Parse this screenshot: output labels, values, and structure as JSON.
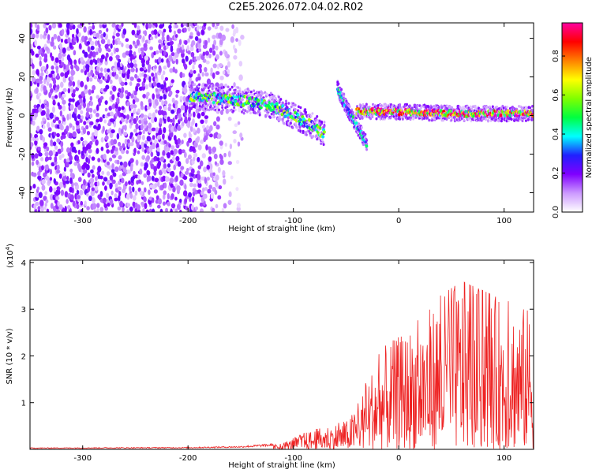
{
  "title": "C2E5.2026.072.04.02.R02",
  "chart_data": [
    {
      "type": "heatmap",
      "xlabel": "Height of straight line (km)",
      "ylabel": "Frequency (Hz)",
      "xlim": [
        -350,
        128
      ],
      "ylim": [
        -50,
        48
      ],
      "x_ticks": [
        -300,
        -200,
        -100,
        0,
        100
      ],
      "x_tick_labels": [
        "-300",
        "-200",
        "-100",
        "0",
        "100"
      ],
      "y_ticks": [
        40,
        20,
        0,
        -20,
        -40
      ],
      "y_tick_labels": [
        "40",
        "20",
        "0",
        "-20",
        "-40"
      ],
      "colorbar": {
        "label": "Normalized spectral amplitude",
        "range": [
          0,
          0.97
        ],
        "ticks": [
          0.0,
          0.2,
          0.4,
          0.6,
          0.8
        ],
        "tick_labels": [
          "0.0",
          "0.2",
          "0.4",
          "0.6",
          "0.8"
        ],
        "colors": [
          "#ffffff",
          "#cc99ff",
          "#8000ff",
          "#2020ff",
          "#00ffff",
          "#00ff40",
          "#80ff00",
          "#ffff00",
          "#ff8000",
          "#ff0000",
          "#ff00a0"
        ]
      },
      "features": [
        {
          "name": "broadband noise",
          "x_range": [
            -350,
            -150
          ],
          "freq_range": [
            -50,
            48
          ],
          "amplitude": 0.15
        },
        {
          "name": "descending trace",
          "points": [
            [
              -198,
              10
            ],
            [
              -150,
              8
            ],
            [
              -120,
              5
            ],
            [
              -100,
              0
            ],
            [
              -80,
              -6
            ],
            [
              -70,
              -10
            ]
          ],
          "amplitude": 0.45
        },
        {
          "name": "second descending trace",
          "points": [
            [
              -58,
              14
            ],
            [
              -50,
              5
            ],
            [
              -40,
              -5
            ],
            [
              -30,
              -15
            ]
          ],
          "amplitude": 0.35
        },
        {
          "name": "steady carrier",
          "points": [
            [
              -40,
              2
            ],
            [
              0,
              2
            ],
            [
              50,
              1
            ],
            [
              128,
              1
            ]
          ],
          "amplitude": 0.75
        }
      ]
    },
    {
      "type": "line",
      "xlabel": "Height of straight line (km)",
      "ylabel": "SNR (10 * v/v)",
      "y_multiplier": "(x10",
      "y_multiplier_exp": "4",
      "y_multiplier_close": ")",
      "xlim": [
        -350,
        128
      ],
      "ylim": [
        0,
        4.05
      ],
      "x_ticks": [
        -300,
        -200,
        -100,
        0,
        100
      ],
      "x_tick_labels": [
        "-300",
        "-200",
        "-100",
        "0",
        "100"
      ],
      "y_ticks": [
        1,
        2,
        3,
        4
      ],
      "y_tick_labels": [
        "1",
        "2",
        "3",
        "4"
      ],
      "color": "#ee2222",
      "envelope_x": [
        -350,
        -200,
        -150,
        -110,
        -90,
        -70,
        -50,
        -40,
        -30,
        -20,
        -10,
        0,
        20,
        40,
        60,
        80,
        100,
        128
      ],
      "envelope_y": [
        0.03,
        0.04,
        0.06,
        0.12,
        0.35,
        0.5,
        0.6,
        0.9,
        1.5,
        2.0,
        2.3,
        2.4,
        2.8,
        3.3,
        3.6,
        3.4,
        3.2,
        3.0
      ]
    }
  ]
}
